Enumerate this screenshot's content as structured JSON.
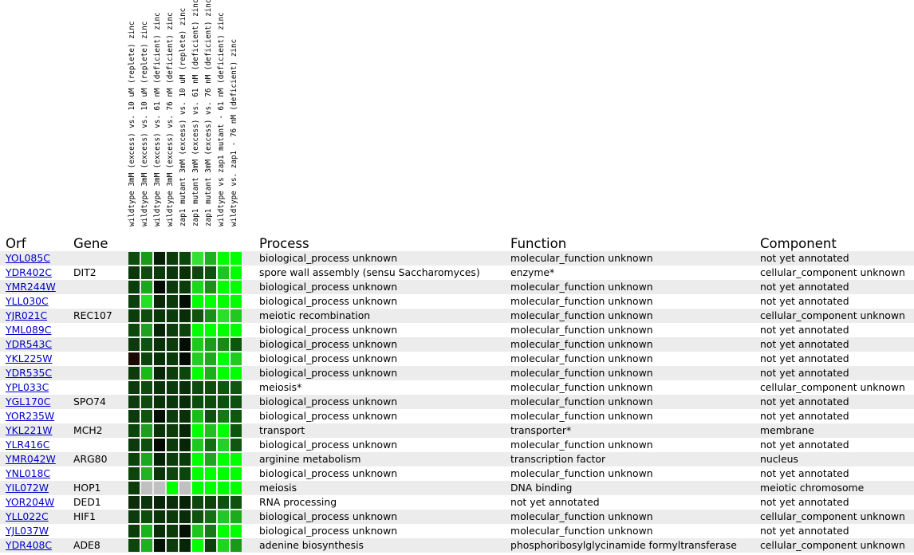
{
  "headers": {
    "orf": "Orf",
    "gene": "Gene",
    "process": "Process",
    "function": "Function",
    "component": "Component"
  },
  "conditions": [
    "wildtype 3mM (excess) vs. 10 uM (replete) zinc",
    "wildtype 3mM (excess) vs. 10 uM (replete) zinc",
    "wildtype 3mM (excess) vs. 61 nM (deficient) zinc",
    "wildtype 3mM (excess) vs. 76 nM (deficient) zinc",
    "zap1 mutant 3mM (excess) vs. 10 uM (replete) zinc",
    "zap1 mutant 3mM (excess) vs. 61 nM (deficient) zinc",
    "zap1 mutant 3mM (excess) vs. 76 nM (deficient) zinc",
    "wildtype vs zap1 mutant - 61 nM (deficient) zinc",
    "wildtype vs. zap1 - 76 nM (deficient) zinc"
  ],
  "rows": [
    {
      "orf": "YOL085C",
      "gene": "",
      "process": "biological_process unknown",
      "function": "molecular_function unknown",
      "component": "not yet annotated",
      "heat": [
        "#0f4a0f",
        "#1a9a1a",
        "#052005",
        "#0b3d0b",
        "#0d460d",
        "#33e033",
        "#1fb01f",
        "#00ff00",
        "#00ff00"
      ]
    },
    {
      "orf": "YDR402C",
      "gene": "DIT2",
      "process": "spore wall assembly (sensu Saccharomyces)",
      "function": "enzyme*",
      "component": "cellular_component unknown",
      "heat": [
        "#0b350b",
        "#0f4a0f",
        "#0c3a0c",
        "#0b360b",
        "#093009",
        "#0d470d",
        "#0f520f",
        "#1cc61c",
        "#00ff00"
      ]
    },
    {
      "orf": "YMR244W",
      "gene": "",
      "process": "biological_process unknown",
      "function": "molecular_function unknown",
      "component": "not yet annotated",
      "heat": [
        "#0b3d0b",
        "#1aa81a",
        "#030c03",
        "#0c3a0c",
        "#0b3d0b",
        "#1fd61f",
        "#1a901a",
        "#00ff00",
        "#00ff00"
      ]
    },
    {
      "orf": "YLL030C",
      "gene": "",
      "process": "biological_process unknown",
      "function": "molecular_function unknown",
      "component": "not yet annotated",
      "heat": [
        "#0c3d0c",
        "#22e022",
        "#082808",
        "#0b3a0b",
        "#030d03",
        "#00ff00",
        "#00ff00",
        "#00ff00",
        "#00ff00"
      ]
    },
    {
      "orf": "YJR021C",
      "gene": "REC107",
      "process": "meiotic recombination",
      "function": "molecular_function unknown",
      "component": "cellular_component unknown",
      "heat": [
        "#0c3c0c",
        "#0e4d0e",
        "#0a350a",
        "#0b3a0b",
        "#082d08",
        "#0f530f",
        "#19901a",
        "#2ade2a",
        "#20c820"
      ]
    },
    {
      "orf": "YML089C",
      "gene": "",
      "process": "biological_process unknown",
      "function": "molecular_function unknown",
      "component": "not yet annotated",
      "heat": [
        "#0d470d",
        "#1fa01f",
        "#072407",
        "#0c3d0c",
        "#0d420d",
        "#00ff00",
        "#00ff00",
        "#00ff00",
        "#00ff00"
      ]
    },
    {
      "orf": "YDR543C",
      "gene": "",
      "process": "biological_process unknown",
      "function": "molecular_function unknown",
      "component": "not yet annotated",
      "heat": [
        "#0c3a0c",
        "#0f520f",
        "#093009",
        "#0b3a0b",
        "#030e03",
        "#1bcb1b",
        "#1b9b1b",
        "#178a17",
        "#0e560e"
      ]
    },
    {
      "orf": "YKL225W",
      "gene": "",
      "process": "biological_process unknown",
      "function": "molecular_function unknown",
      "component": "not yet annotated",
      "heat": [
        "#1b0a04",
        "#0d460d",
        "#083008",
        "#0b3b0b",
        "#020a02",
        "#22ce22",
        "#1dab1d",
        "#00ff00",
        "#1ccd1c"
      ]
    },
    {
      "orf": "YDR535C",
      "gene": "",
      "process": "biological_process unknown",
      "function": "molecular_function unknown",
      "component": "not yet annotated",
      "heat": [
        "#0c3c0c",
        "#1ab91a",
        "#072507",
        "#0c3e0c",
        "#0d460d",
        "#00ff00",
        "#1bb01b",
        "#00ff00",
        "#00ff00"
      ]
    },
    {
      "orf": "YPL033C",
      "gene": "",
      "process": "meiosis*",
      "function": "molecular_function unknown",
      "component": "cellular_component unknown",
      "heat": [
        "#0c3a0c",
        "#0e4b0e",
        "#0a340a",
        "#0b3a0b",
        "#093009",
        "#0e4b0e",
        "#0e4d0e",
        "#0f560f",
        "#0f560f"
      ]
    },
    {
      "orf": "YGL170C",
      "gene": "SPO74",
      "process": "biological_process unknown",
      "function": "molecular_function unknown",
      "component": "not yet annotated",
      "heat": [
        "#0c3a0c",
        "#0e4a0e",
        "#093209",
        "#0a360a",
        "#082c08",
        "#0e4b0e",
        "#0e4b0e",
        "#0e510e",
        "#0e510e"
      ]
    },
    {
      "orf": "YOR235W",
      "gene": "",
      "process": "biological_process unknown",
      "function": "molecular_function unknown",
      "component": "not yet annotated",
      "heat": [
        "#0c3a0c",
        "#0f530f",
        "#030f03",
        "#0c3c0c",
        "#093009",
        "#1dba1d",
        "#0f520f",
        "#157a15",
        "#0f560f"
      ]
    },
    {
      "orf": "YKL221W",
      "gene": "MCH2",
      "process": "transport",
      "function": "transporter*",
      "component": "membrane",
      "heat": [
        "#0d440d",
        "#1e9e1e",
        "#0a330a",
        "#0c3c0c",
        "#072507",
        "#00ff00",
        "#21c021",
        "#00ff00",
        "#0e560e"
      ]
    },
    {
      "orf": "YLR416C",
      "gene": "",
      "process": "biological_process unknown",
      "function": "molecular_function unknown",
      "component": "not yet annotated",
      "heat": [
        "#0c3a0c",
        "#0f4e0f",
        "#020802",
        "#0b3a0b",
        "#072507",
        "#1ec81e",
        "#127012",
        "#24d024",
        "#0f560f"
      ]
    },
    {
      "orf": "YMR042W",
      "gene": "ARG80",
      "process": "arginine metabolism",
      "function": "transcription factor",
      "component": "nucleus",
      "heat": [
        "#0d420d",
        "#1ca81c",
        "#072307",
        "#0c3d0c",
        "#0b3a0b",
        "#00ff00",
        "#1fa51f",
        "#00ff00",
        "#00ff00"
      ]
    },
    {
      "orf": "YNL018C",
      "gene": "",
      "process": "biological_process unknown",
      "function": "molecular_function unknown",
      "component": "not yet annotated",
      "heat": [
        "#0d430d",
        "#22b222",
        "#0a340a",
        "#0e470e",
        "#0d460d",
        "#00ff00",
        "#00ff00",
        "#00ff00",
        "#00ff00"
      ]
    },
    {
      "orf": "YIL072W",
      "gene": "HOP1",
      "process": "meiosis",
      "function": "DNA binding",
      "component": "meiotic chromosome",
      "heat": [
        "#0c3c0c",
        "#c0c0c0",
        "#c0c0c0",
        "#00ff00",
        "#c0c0c0",
        "#00ff00",
        "#00ff00",
        "#00ff00",
        "#00ff00"
      ]
    },
    {
      "orf": "YOR204W",
      "gene": "DED1",
      "process": "RNA processing",
      "function": "not yet annotated",
      "component": "not yet annotated",
      "heat": [
        "#0c2c0c",
        "#0c340c",
        "#092409",
        "#0b2e0b",
        "#082208",
        "#0e470e",
        "#0d430d",
        "#0f520f",
        "#0f520f"
      ]
    },
    {
      "orf": "YLL022C",
      "gene": "HIF1",
      "process": "biological_process unknown",
      "function": "molecular_function unknown",
      "component": "cellular_component unknown",
      "heat": [
        "#0c3a0c",
        "#0e4c0e",
        "#0a330a",
        "#0b3a0b",
        "#082d08",
        "#0f520f",
        "#147014",
        "#22c822",
        "#1bab1b"
      ]
    },
    {
      "orf": "YJL037W",
      "gene": "",
      "process": "biological_process unknown",
      "function": "molecular_function unknown",
      "component": "not yet annotated",
      "heat": [
        "#0c3c0c",
        "#1ab41a",
        "#093009",
        "#0c3c0c",
        "#041204",
        "#1dc41d",
        "#157a15",
        "#00ff00",
        "#00ff00"
      ]
    },
    {
      "orf": "YDR408C",
      "gene": "ADE8",
      "process": "adenine biosynthesis",
      "function": "phosphoribosylglycinamide formyltransferase",
      "component": "cellular_component unknown",
      "heat": [
        "#0d450d",
        "#1eb01e",
        "#041404",
        "#0c3c0c",
        "#072507",
        "#00ff00",
        "#0c3f0c",
        "#1cd51c",
        "#1a9a1a"
      ]
    }
  ]
}
